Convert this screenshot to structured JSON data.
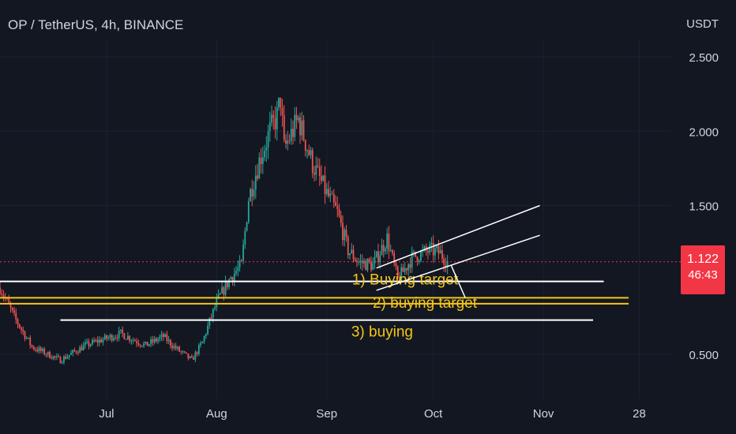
{
  "header": {
    "title": "OP / TetherUS, 4h, BINANCE",
    "currency": "USDT"
  },
  "price_tag": {
    "price": "1.122",
    "countdown": "46:43"
  },
  "colors": {
    "background": "#131722",
    "text": "#d1d4dc",
    "up": "#26a69a",
    "down": "#ef5350",
    "annotation": "#f5c518",
    "trendline": "#ffffff",
    "price_tag": "#f23645"
  },
  "chart_data": {
    "type": "candlestick",
    "y_axis": {
      "ticks": [
        "2.500",
        "2.000",
        "1.500",
        "0.500"
      ],
      "tick_values": [
        2.5,
        2.0,
        1.5,
        0.5
      ],
      "ylim": [
        0.3,
        2.9
      ]
    },
    "x_axis": {
      "ticks": [
        "Jul",
        "Aug",
        "Sep",
        "Oct",
        "Nov",
        "28"
      ],
      "tick_dates": [
        "2022-07-01",
        "2022-08-01",
        "2022-09-01",
        "2022-10-01",
        "2022-11-01",
        "2022-11-28"
      ],
      "xlim": [
        "2022-06-01",
        "2022-12-07"
      ]
    },
    "current_price": 1.122,
    "price_path": [
      {
        "date": "2022-06-01",
        "close": 0.95
      },
      {
        "date": "2022-06-05",
        "close": 0.75
      },
      {
        "date": "2022-06-10",
        "close": 0.55
      },
      {
        "date": "2022-06-18",
        "close": 0.46
      },
      {
        "date": "2022-06-25",
        "close": 0.56
      },
      {
        "date": "2022-07-05",
        "close": 0.64
      },
      {
        "date": "2022-07-12",
        "close": 0.56
      },
      {
        "date": "2022-07-17",
        "close": 0.62
      },
      {
        "date": "2022-07-20",
        "close": 0.55
      },
      {
        "date": "2022-07-25",
        "close": 0.46
      },
      {
        "date": "2022-07-28",
        "close": 0.58
      },
      {
        "date": "2022-07-30",
        "close": 0.72
      },
      {
        "date": "2022-08-01",
        "close": 0.85
      },
      {
        "date": "2022-08-05",
        "close": 1.02
      },
      {
        "date": "2022-08-08",
        "close": 1.1
      },
      {
        "date": "2022-08-10",
        "close": 1.55
      },
      {
        "date": "2022-08-13",
        "close": 1.8
      },
      {
        "date": "2022-08-16",
        "close": 2.0
      },
      {
        "date": "2022-08-18",
        "close": 2.1
      },
      {
        "date": "2022-08-19",
        "close": 2.22
      },
      {
        "date": "2022-08-20",
        "close": 1.88
      },
      {
        "date": "2022-08-24",
        "close": 2.08
      },
      {
        "date": "2022-08-28",
        "close": 1.78
      },
      {
        "date": "2022-09-01",
        "close": 1.58
      },
      {
        "date": "2022-09-04",
        "close": 1.45
      },
      {
        "date": "2022-09-07",
        "close": 1.2
      },
      {
        "date": "2022-09-10",
        "close": 1.12
      },
      {
        "date": "2022-09-14",
        "close": 1.1
      },
      {
        "date": "2022-09-18",
        "close": 1.28
      },
      {
        "date": "2022-09-21",
        "close": 1.0
      },
      {
        "date": "2022-09-25",
        "close": 1.15
      },
      {
        "date": "2022-09-30",
        "close": 1.2
      },
      {
        "date": "2022-10-03",
        "close": 1.18
      },
      {
        "date": "2022-10-05",
        "close": 1.12
      }
    ],
    "annotations": [
      {
        "label": "1) Buying target",
        "price": 0.99,
        "from": "2022-05-30",
        "to": "2022-11-18"
      },
      {
        "label": "2) buying target",
        "price_band": [
          0.84,
          0.88
        ],
        "from": "2022-05-30",
        "to": "2022-11-25"
      },
      {
        "label": "3) buying",
        "price": 0.73,
        "from": "2022-06-18",
        "to": "2022-11-15"
      }
    ],
    "channel": {
      "upper": [
        {
          "date": "2022-09-15",
          "price": 1.08
        },
        {
          "date": "2022-10-31",
          "price": 1.5
        }
      ],
      "lower": [
        {
          "date": "2022-09-15",
          "price": 0.93
        },
        {
          "date": "2022-10-31",
          "price": 1.3
        }
      ]
    },
    "projection": [
      {
        "date": "2022-10-06",
        "price": 1.1
      },
      {
        "date": "2022-10-10",
        "price": 0.88
      }
    ]
  }
}
